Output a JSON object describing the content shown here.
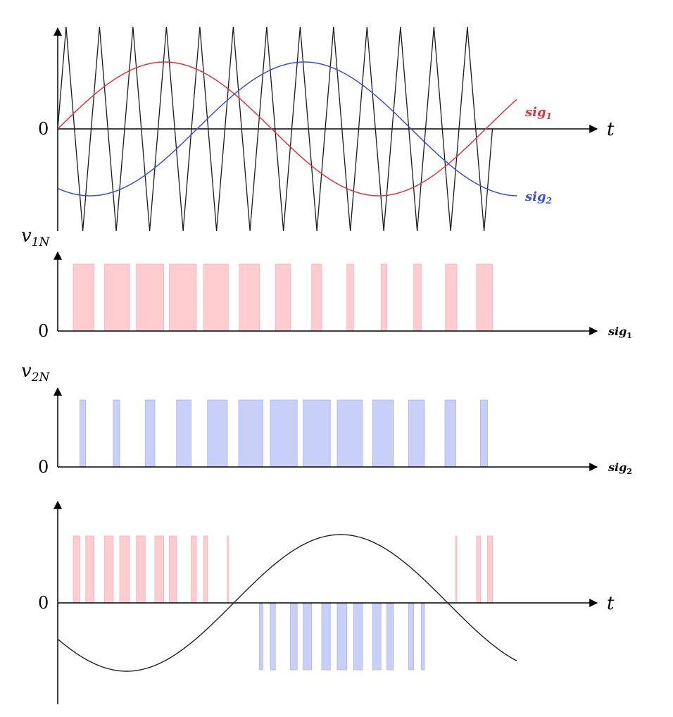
{
  "colors": {
    "red": "#e8333a",
    "blue": "#3a4df0",
    "pink_fill": "#ffcccf",
    "pink_edge": "#ffaeb3",
    "lblue_fill": "#c8cff8",
    "lblue_edge": "#aab5f3",
    "axis": "#000000",
    "carrier": "#1a1a1a"
  },
  "panel1": {
    "zero": "0",
    "time_label": "t",
    "sig1_label": "sig",
    "sig1_sub": "1",
    "sig2_label": "sig",
    "sig2_sub": "2",
    "carrier_periods": 13
  },
  "panel2": {
    "ylabel": "v",
    "ylabel_sub": "1N",
    "zero": "0",
    "xlabel": "sig",
    "xlabel_sub": "1"
  },
  "panel3": {
    "ylabel": "v",
    "ylabel_sub": "2N",
    "zero": "0",
    "xlabel": "sig",
    "xlabel_sub": "2"
  },
  "panel4": {
    "zero": "0",
    "time_label": "t"
  }
}
